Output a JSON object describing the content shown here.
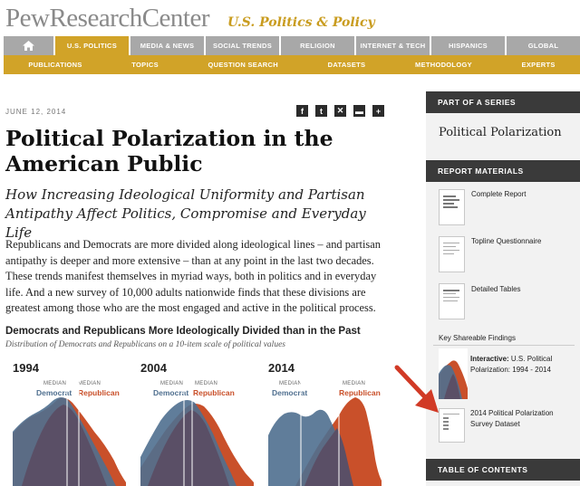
{
  "header": {
    "logo": "PewResearchCenter",
    "section": "U.S. Politics & Policy"
  },
  "nav_primary": [
    {
      "label": "U.S. POLITICS",
      "active": true
    },
    {
      "label": "MEDIA & NEWS"
    },
    {
      "label": "SOCIAL TRENDS"
    },
    {
      "label": "RELIGION"
    },
    {
      "label": "INTERNET & TECH"
    },
    {
      "label": "HISPANICS"
    },
    {
      "label": "GLOBAL"
    }
  ],
  "nav_secondary": [
    "PUBLICATIONS",
    "TOPICS",
    "QUESTION SEARCH",
    "DATASETS",
    "METHODOLOGY",
    "EXPERTS"
  ],
  "article": {
    "date": "JUNE 12, 2014",
    "share_icons": [
      "facebook-icon",
      "tumblr-icon",
      "email-icon",
      "print-icon",
      "plus-icon"
    ],
    "title": "Political Polarization in the American Public",
    "subtitle": "How Increasing Ideological Uniformity and Partisan Antipathy Affect Politics, Compromise and Everyday Life",
    "body": "Republicans and Democrats are more divided along ideological lines – and partisan antipathy is deeper and more extensive – than at any point in the last two decades. These trends manifest themselves in myriad ways, both in politics and in everyday life. And a new survey of 10,000 adults nationwide finds that these divisions are greatest among those who are the most engaged and active in the political process."
  },
  "chart": {
    "title": "Democrats and Republicans More Ideologically Divided than in the Past",
    "subtitle": "Distribution of Democrats and Republicans on a 10-item scale of political values",
    "median_label": "MEDIAN",
    "dem_label": "Democrat",
    "rep_label": "Republican",
    "colors": {
      "democrat": "#4f6f8f",
      "republican": "#c9502a",
      "overlap": "#5a4f66"
    },
    "panels": [
      {
        "year": "1994"
      },
      {
        "year": "2004"
      },
      {
        "year": "2014"
      }
    ]
  },
  "sidebar": {
    "series_head": "PART OF A SERIES",
    "series_title": "Political Polarization",
    "materials_head": "REPORT MATERIALS",
    "materials": [
      "Complete Report",
      "Topline Questionnaire",
      "Detailed Tables"
    ],
    "key_findings": "Key Shareable Findings",
    "interactive_bold": "Interactive:",
    "interactive_text": " U.S. Political Polarization: 1994 - 2014",
    "dataset": "2014 Political Polarization Survey Dataset",
    "toc_head": "TABLE OF CONTENTS"
  },
  "annotation": {
    "arrow_color": "#d13a26"
  }
}
